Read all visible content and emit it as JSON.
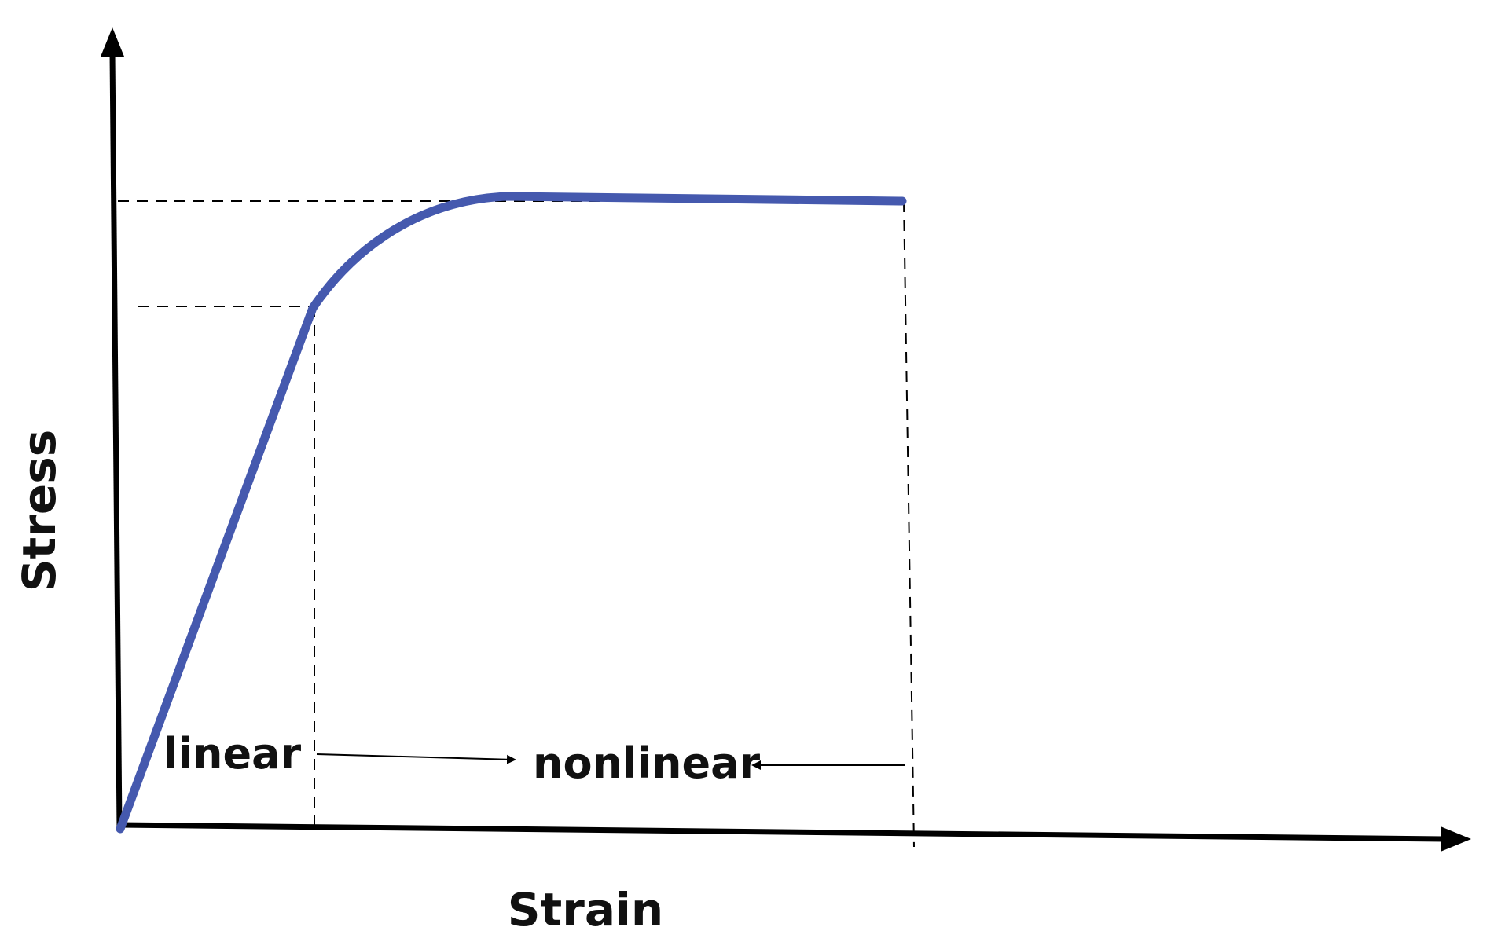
{
  "diagram": {
    "y_axis_label": "Stress",
    "x_axis_label": "Strain",
    "region_labels": {
      "linear": "linear",
      "nonlinear": "nonlinear"
    },
    "colors": {
      "curve": "#4559AE",
      "axes": "#000000",
      "guides": "#000000",
      "background": "#FFFFFF"
    }
  }
}
